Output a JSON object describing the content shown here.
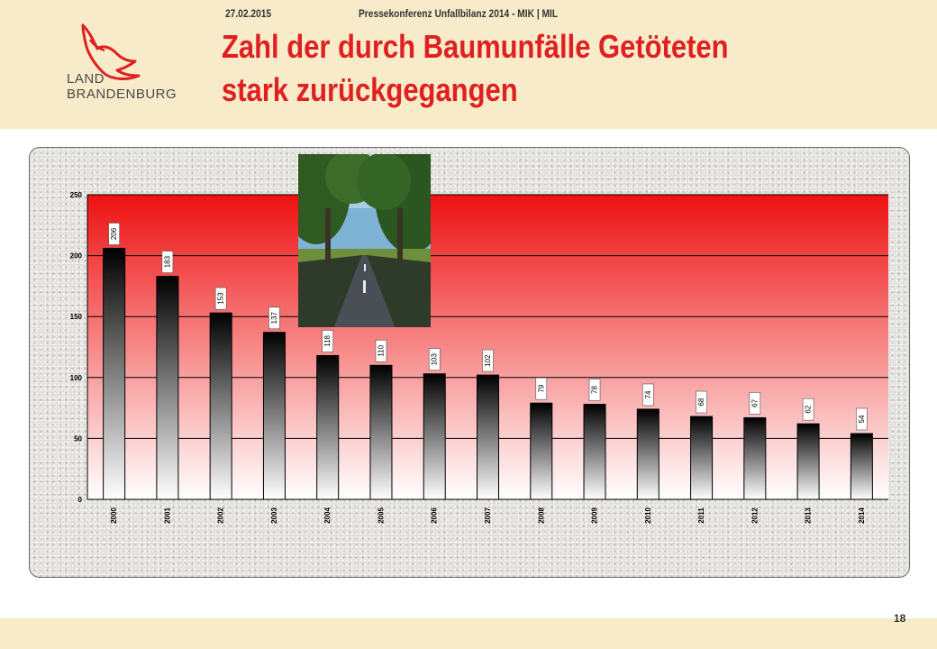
{
  "header": {
    "title_line1": "Zahl der durch Baumunfälle Getöteten",
    "title_line2": "stark zurückgegangen",
    "logo_line1": "LAND",
    "logo_line2": "BRANDENBURG"
  },
  "footer": {
    "date": "27.02.2015",
    "event": "Pressekonferenz Unfallbilanz 2014 - MIK | MIL",
    "page_number": "18"
  },
  "colors": {
    "title": "#e02020",
    "band_top": "#ee1111",
    "band_bottom": "#ffffff",
    "bar_top": "#000000",
    "bar_bottom": "#ffffff",
    "header_bg": "#f7ebc9"
  },
  "chart_data": {
    "type": "bar",
    "categories": [
      "2000",
      "2001",
      "2002",
      "2003",
      "2004",
      "2005",
      "2006",
      "2007",
      "2008",
      "2009",
      "2010",
      "2011",
      "2012",
      "2013",
      "2014"
    ],
    "values": [
      206,
      183,
      153,
      137,
      118,
      110,
      103,
      102,
      79,
      78,
      74,
      68,
      67,
      62,
      54
    ],
    "ylim": [
      0,
      250
    ],
    "yticks": [
      0,
      50,
      100,
      150,
      200,
      250
    ],
    "xlabel": "",
    "ylabel": "",
    "grid": true,
    "legend": "none"
  }
}
